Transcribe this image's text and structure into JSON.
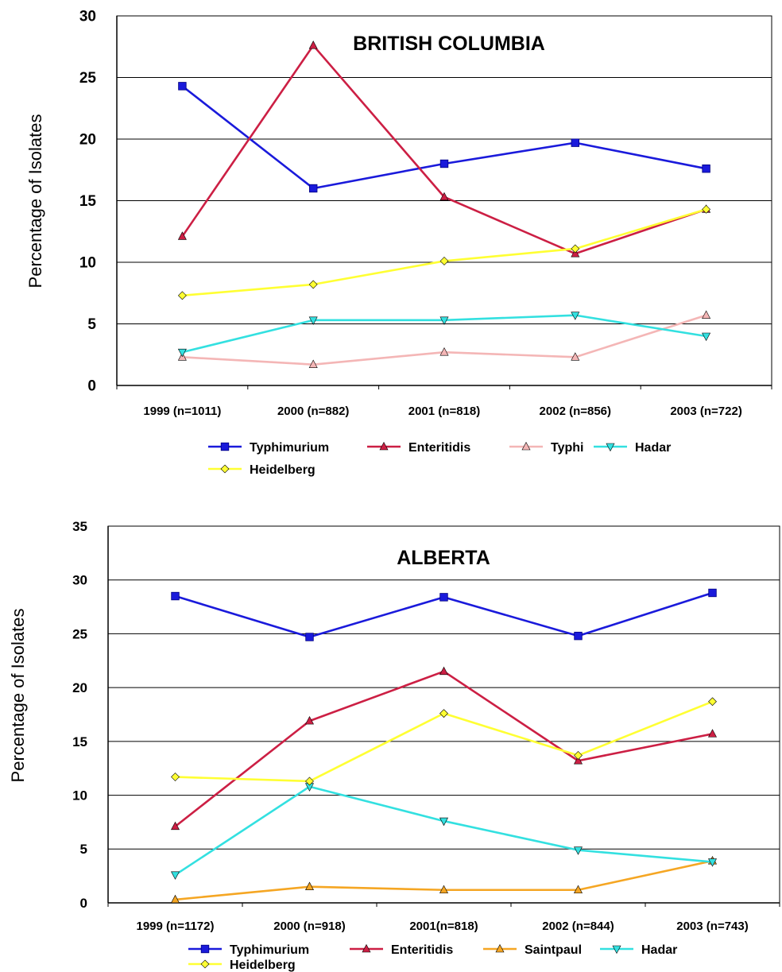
{
  "chart_data": [
    {
      "type": "line",
      "title": "BRITISH COLUMBIA",
      "ylabel": "Percentage of Isolates",
      "ylim": [
        0,
        30
      ],
      "yticks": [
        0,
        5,
        10,
        15,
        20,
        25,
        30
      ],
      "grid": true,
      "legend_position": "bottom",
      "categories": [
        "1999 (n=1011)",
        "2000 (n=882)",
        "2001 (n=818)",
        "2002 (n=856)",
        "2003 (n=722)"
      ],
      "series": [
        {
          "name": "Typhimurium",
          "color": "#1a1adb",
          "marker": "square",
          "values": [
            24.3,
            16.0,
            18.0,
            19.7,
            17.6
          ]
        },
        {
          "name": "Enteritidis",
          "color": "#cc1f44",
          "marker": "triangle-up",
          "values": [
            12.1,
            27.6,
            15.3,
            10.7,
            14.3
          ]
        },
        {
          "name": "Typhi",
          "color": "#f4b6b6",
          "marker": "triangle-up",
          "values": [
            2.3,
            1.7,
            2.7,
            2.3,
            5.7
          ]
        },
        {
          "name": "Hadar",
          "color": "#33e0e0",
          "marker": "triangle-down",
          "values": [
            2.7,
            5.3,
            5.3,
            5.7,
            4.0
          ]
        },
        {
          "name": "Heidelberg",
          "color": "#ffff33",
          "marker": "diamond",
          "values": [
            7.3,
            8.2,
            10.1,
            11.1,
            14.3
          ]
        }
      ]
    },
    {
      "type": "line",
      "title": "ALBERTA",
      "ylabel": "Percentage of Isolates",
      "ylim": [
        0,
        35
      ],
      "yticks": [
        0,
        5,
        10,
        15,
        20,
        25,
        30,
        35
      ],
      "grid": true,
      "legend_position": "bottom",
      "categories": [
        "1999 (n=1172)",
        "2000 (n=918)",
        "2001(n=818)",
        "2002 (n=844)",
        "2003 (n=743)"
      ],
      "series": [
        {
          "name": "Typhimurium",
          "color": "#1a1adb",
          "marker": "square",
          "values": [
            28.5,
            24.7,
            28.4,
            24.8,
            28.8
          ]
        },
        {
          "name": "Enteritidis",
          "color": "#cc1f44",
          "marker": "triangle-up",
          "values": [
            7.1,
            16.9,
            21.5,
            13.2,
            15.7
          ]
        },
        {
          "name": "Saintpaul",
          "color": "#f5a623",
          "marker": "triangle-up",
          "values": [
            0.3,
            1.5,
            1.2,
            1.2,
            3.9
          ]
        },
        {
          "name": "Hadar",
          "color": "#33e0e0",
          "marker": "triangle-down",
          "values": [
            2.6,
            10.8,
            7.6,
            4.9,
            3.8
          ]
        },
        {
          "name": "Heidelberg",
          "color": "#ffff33",
          "marker": "diamond",
          "values": [
            11.7,
            11.3,
            17.6,
            13.7,
            18.7
          ]
        }
      ]
    }
  ]
}
